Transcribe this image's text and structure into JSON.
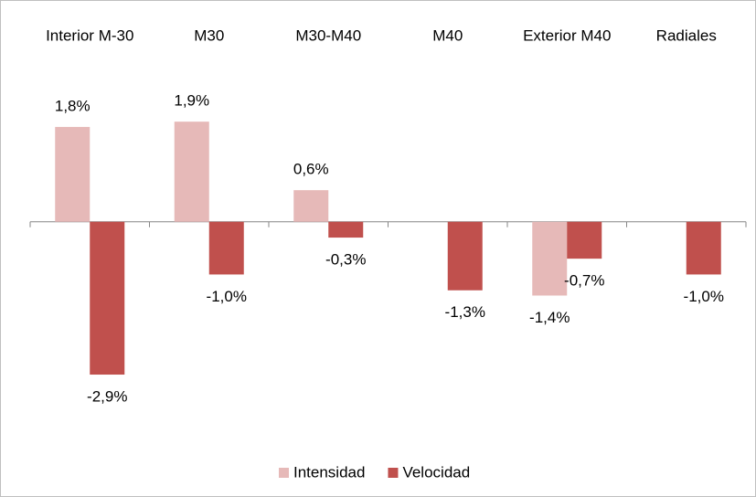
{
  "chart_data": {
    "type": "bar",
    "categories": [
      "Interior M-30",
      "M30",
      "M30-M40",
      "M40",
      "Exterior M40",
      "Radiales"
    ],
    "series": [
      {
        "name": "Intensidad",
        "color": "#e6b9b8",
        "values": [
          1.8,
          1.9,
          0.6,
          null,
          -1.4,
          null
        ],
        "value_labels": [
          "1,8%",
          "1,9%",
          "0,6%",
          null,
          "-1,4%",
          null
        ]
      },
      {
        "name": "Velocidad",
        "color": "#c0504d",
        "values": [
          -2.9,
          -1.0,
          -0.3,
          -1.3,
          -0.7,
          -1.0
        ],
        "value_labels": [
          "-2,9%",
          "-1,0%",
          "-0,3%",
          "-1,3%",
          "-0,7%",
          "-1,0%"
        ]
      }
    ],
    "ylim": [
      -3,
      2
    ],
    "legend": "bottom"
  }
}
